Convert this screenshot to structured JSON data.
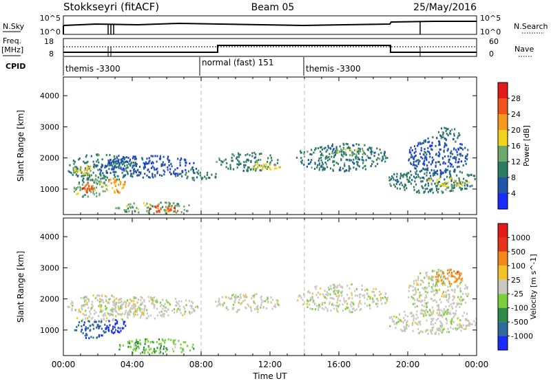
{
  "header": {
    "station": "Stokkseyri (fitACF)",
    "beam": "Beam 05",
    "date": "25/May/2016"
  },
  "top_panels": {
    "nsky_label": "N.Sky",
    "nsky_ticks": [
      "10^5",
      "10^0"
    ],
    "nsearch_label": "N.Search",
    "nsearch_ticks": [
      "10^5",
      "10^0"
    ],
    "freq_label_line1": "Freq.",
    "freq_label_line2": "[MHz]",
    "freq_ticks": [
      "18",
      "8"
    ],
    "nave_label": "Nave",
    "nave_ticks": [
      "60",
      "0"
    ],
    "cpid_label": "CPID",
    "cpid_segments": [
      {
        "label": "themis -3300",
        "start_hour": 0,
        "end_hour": 8
      },
      {
        "label": "normal (fast) 151",
        "start_hour": 8,
        "end_hour": 14
      },
      {
        "label": "themis -3300",
        "start_hour": 14,
        "end_hour": 24
      }
    ]
  },
  "chart_data": [
    {
      "type": "heatmap",
      "title": "",
      "xlabel": "Time UT",
      "ylabel": "Slant Range [km]",
      "xlim": [
        0,
        24
      ],
      "ylim": [
        180,
        4600
      ],
      "x_tick_labels": [
        "00:00",
        "04:00",
        "08:00",
        "12:00",
        "16:00",
        "20:00",
        "00:00"
      ],
      "y_ticks": [
        1000,
        2000,
        3000,
        4000
      ],
      "colorbar_label": "Power [dB]",
      "colorbar_ticks": [
        "4",
        "8",
        "12",
        "16",
        "20",
        "24",
        "28"
      ],
      "colorbar_colors": [
        "#1a2bff",
        "#2255aa",
        "#2d7b63",
        "#6aa86b",
        "#f0d21f",
        "#f59a1e",
        "#f0541a",
        "#e31a1c"
      ],
      "echo_regions": [
        {
          "t0": 0.2,
          "t1": 4.3,
          "r0": 1300,
          "r1": 2150,
          "power_class": 2
        },
        {
          "t0": 0.6,
          "t1": 1.6,
          "r0": 1500,
          "r1": 1800,
          "power_class": 4
        },
        {
          "t0": 0.5,
          "t1": 2.6,
          "r0": 750,
          "r1": 1350,
          "power_class": 3
        },
        {
          "t0": 1.1,
          "t1": 1.7,
          "r0": 900,
          "r1": 1250,
          "power_class": 6
        },
        {
          "t0": 2.5,
          "t1": 3.6,
          "r0": 900,
          "r1": 1400,
          "power_class": 5
        },
        {
          "t0": 3.0,
          "t1": 7.6,
          "r0": 250,
          "r1": 600,
          "power_class": 3
        },
        {
          "t0": 4.8,
          "t1": 6.8,
          "r0": 280,
          "r1": 520,
          "power_class": 6
        },
        {
          "t0": 2.0,
          "t1": 7.8,
          "r0": 1400,
          "r1": 2100,
          "power_class": 1
        },
        {
          "t0": 6.5,
          "t1": 8.9,
          "r0": 1300,
          "r1": 1700,
          "power_class": 2
        },
        {
          "t0": 8.8,
          "t1": 12.5,
          "r0": 1600,
          "r1": 2200,
          "power_class": 2
        },
        {
          "t0": 10.8,
          "t1": 12.6,
          "r0": 1650,
          "r1": 1850,
          "power_class": 4
        },
        {
          "t0": 13.5,
          "t1": 18.8,
          "r0": 1600,
          "r1": 2500,
          "power_class": 2
        },
        {
          "t0": 15.5,
          "t1": 17.5,
          "r0": 2050,
          "r1": 2350,
          "power_class": 3
        },
        {
          "t0": 18.8,
          "t1": 24.0,
          "r0": 900,
          "r1": 1700,
          "power_class": 2
        },
        {
          "t0": 21.0,
          "t1": 23.5,
          "r0": 1100,
          "r1": 1400,
          "power_class": 4
        },
        {
          "t0": 20.0,
          "t1": 23.5,
          "r0": 1500,
          "r1": 2700,
          "power_class": 1
        },
        {
          "t0": 21.5,
          "t1": 23.0,
          "r0": 2600,
          "r1": 3000,
          "power_class": 2
        }
      ]
    },
    {
      "type": "heatmap",
      "title": "",
      "xlabel": "Time UT",
      "ylabel": "Slant Range [km]",
      "xlim": [
        0,
        24
      ],
      "ylim": [
        180,
        4600
      ],
      "x_tick_labels": [
        "00:00",
        "04:00",
        "08:00",
        "12:00",
        "16:00",
        "20:00",
        "00:00"
      ],
      "y_ticks": [
        1000,
        2000,
        3000,
        4000
      ],
      "colorbar_label": "Velocity [m s^-1]",
      "colorbar_ticks": [
        "1000",
        "500",
        "100",
        "25",
        "-25",
        "-100",
        "-500",
        "-1000"
      ],
      "colorbar_colors": [
        "#1a2bff",
        "#2f6b9a",
        "#2f8a4a",
        "#7ad03a",
        "#c8c8c0",
        "#f3c227",
        "#f28a1a",
        "#e6321a",
        "#e31a1c"
      ],
      "echo_regions": [
        {
          "t0": 0.2,
          "t1": 4.3,
          "r0": 1300,
          "r1": 2150,
          "velocity_class": 4
        },
        {
          "t0": 0.6,
          "t1": 2.6,
          "r0": 750,
          "r1": 1400,
          "velocity_class": 1
        },
        {
          "t0": 2.5,
          "t1": 3.6,
          "r0": 900,
          "r1": 1450,
          "velocity_class": 0
        },
        {
          "t0": 3.0,
          "t1": 7.6,
          "r0": 250,
          "r1": 750,
          "velocity_class": 3
        },
        {
          "t0": 2.0,
          "t1": 7.8,
          "r0": 1400,
          "r1": 2100,
          "velocity_class": 4
        },
        {
          "t0": 8.8,
          "t1": 12.5,
          "r0": 1600,
          "r1": 2200,
          "velocity_class": 4
        },
        {
          "t0": 13.5,
          "t1": 18.8,
          "r0": 1600,
          "r1": 2500,
          "velocity_class": 4
        },
        {
          "t0": 18.8,
          "t1": 24.0,
          "r0": 900,
          "r1": 1700,
          "velocity_class": 4
        },
        {
          "t0": 20.0,
          "t1": 23.5,
          "r0": 1500,
          "r1": 3000,
          "velocity_class": 4
        },
        {
          "t0": 21.5,
          "t1": 23.2,
          "r0": 2500,
          "r1": 3000,
          "velocity_class": 6
        }
      ]
    }
  ]
}
